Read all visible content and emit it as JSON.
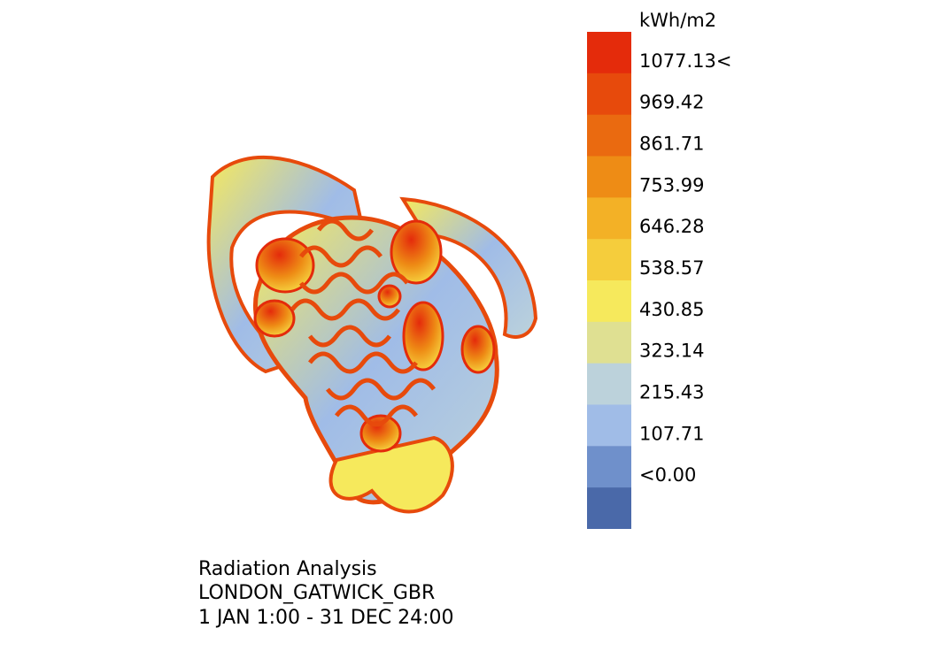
{
  "legend": {
    "title": "kWh/m2",
    "entries": [
      {
        "label": "1077.13<",
        "color": "#e42b0b"
      },
      {
        "label": "969.42",
        "color": "#e74a0c"
      },
      {
        "label": "861.71",
        "color": "#ea6a10"
      },
      {
        "label": "753.99",
        "color": "#ee8c15"
      },
      {
        "label": "646.28",
        "color": "#f3b126"
      },
      {
        "label": "538.57",
        "color": "#f5cd3c"
      },
      {
        "label": "430.85",
        "color": "#f6e95c"
      },
      {
        "label": "323.14",
        "color": "#dfe092"
      },
      {
        "label": "215.43",
        "color": "#bcd2db"
      },
      {
        "label": "107.71",
        "color": "#a0bce7"
      },
      {
        "label": "<0.00",
        "color": "#6f90cb"
      }
    ],
    "bottom_color": "#4a69a9"
  },
  "caption": {
    "title": "Radiation Analysis",
    "location": "LONDON_GATWICK_GBR",
    "period": "1 JAN 1:00 - 31 DEC 24:00"
  }
}
